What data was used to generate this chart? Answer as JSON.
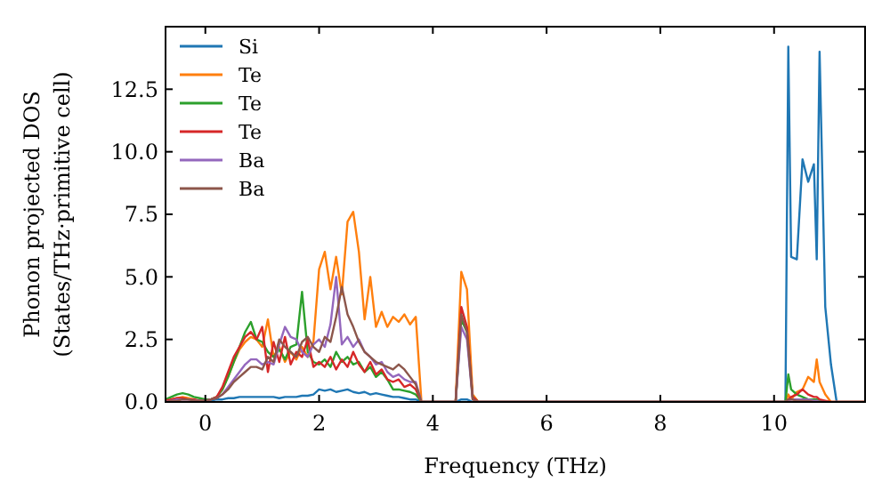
{
  "chart_data": {
    "type": "line",
    "xlabel": "Frequency (THz)",
    "ylabel": "Phonon projected DOS\n(States/THz·primitive cell)",
    "xlim": [
      -0.7,
      11.6
    ],
    "ylim": [
      0,
      15
    ],
    "xticks": [
      0,
      2,
      4,
      6,
      8,
      10
    ],
    "yticks": [
      {
        "value": 0,
        "label": "0.0"
      },
      {
        "value": 2.5,
        "label": "2.5"
      },
      {
        "value": 5,
        "label": "5.0"
      },
      {
        "value": 7.5,
        "label": "7.5"
      },
      {
        "value": 10,
        "label": "10.0"
      },
      {
        "value": 12.5,
        "label": "12.5"
      }
    ],
    "grid": false,
    "legend": "top left",
    "line_style": "solid",
    "marker": "none",
    "x": [
      -0.7,
      -0.6,
      -0.5,
      -0.4,
      -0.3,
      -0.2,
      -0.1,
      0.0,
      0.1,
      0.2,
      0.3,
      0.4,
      0.5,
      0.6,
      0.7,
      0.8,
      0.9,
      1.0,
      1.1,
      1.2,
      1.3,
      1.4,
      1.5,
      1.6,
      1.7,
      1.8,
      1.9,
      2.0,
      2.1,
      2.2,
      2.3,
      2.4,
      2.5,
      2.6,
      2.7,
      2.8,
      2.9,
      3.0,
      3.1,
      3.2,
      3.3,
      3.4,
      3.5,
      3.6,
      3.7,
      3.8,
      3.9,
      4.4,
      4.5,
      4.6,
      4.7,
      4.8,
      10.1,
      10.2,
      10.25,
      10.3,
      10.4,
      10.5,
      10.6,
      10.7,
      10.75,
      10.8,
      10.9,
      11.0,
      11.1,
      11.6
    ],
    "series": [
      {
        "name": "Si",
        "color": "#1f77b4",
        "values": [
          null,
          null,
          null,
          null,
          null,
          null,
          0,
          0,
          0.05,
          0.1,
          0.1,
          0.15,
          0.15,
          0.2,
          0.2,
          0.2,
          0.2,
          0.2,
          0.2,
          0.2,
          0.15,
          0.2,
          0.2,
          0.2,
          0.25,
          0.25,
          0.3,
          0.5,
          0.45,
          0.5,
          0.4,
          0.45,
          0.5,
          0.4,
          0.35,
          0.4,
          0.3,
          0.35,
          0.3,
          0.25,
          0.2,
          0.2,
          0.15,
          0.1,
          0.1,
          0,
          0,
          0,
          0.1,
          0.1,
          0,
          0,
          0,
          0,
          14.2,
          5.8,
          5.7,
          9.7,
          8.8,
          9.5,
          5.7,
          14.0,
          3.8,
          1.5,
          0,
          0
        ]
      },
      {
        "name": "Te",
        "color": "#ff7f0e",
        "values": [
          0,
          0.1,
          0.15,
          0.2,
          0.15,
          0.1,
          0.05,
          0.05,
          0.1,
          0.2,
          0.5,
          1.0,
          1.6,
          2.1,
          2.4,
          2.6,
          2.5,
          2.2,
          3.3,
          1.8,
          2.2,
          1.6,
          2.0,
          1.7,
          2.2,
          1.8,
          2.4,
          5.3,
          6.0,
          4.5,
          5.8,
          4.3,
          7.2,
          7.6,
          6.0,
          3.3,
          5.0,
          3.0,
          3.6,
          3.0,
          3.4,
          3.2,
          3.5,
          3.1,
          3.4,
          0,
          0,
          0,
          5.2,
          4.5,
          0.3,
          0,
          0,
          0,
          0.3,
          0.1,
          0.4,
          0.5,
          1.0,
          0.8,
          1.7,
          0.8,
          0.3,
          0,
          0,
          0
        ]
      },
      {
        "name": "Te",
        "color": "#2ca02c",
        "values": [
          0.1,
          0.2,
          0.3,
          0.35,
          0.3,
          0.2,
          0.15,
          0.1,
          0.1,
          0.2,
          0.5,
          1.0,
          1.6,
          2.2,
          2.8,
          3.2,
          2.5,
          2.4,
          2.0,
          1.8,
          2.1,
          1.7,
          2.2,
          2.3,
          4.4,
          2.0,
          1.6,
          1.5,
          1.7,
          1.4,
          2.0,
          1.6,
          1.8,
          1.5,
          1.6,
          1.2,
          1.4,
          1.0,
          1.2,
          0.9,
          0.5,
          0.5,
          0.45,
          0.4,
          0.3,
          0,
          0,
          0,
          3.3,
          2.8,
          0.2,
          0,
          0,
          0,
          1.1,
          0.5,
          0.3,
          0.2,
          0.1,
          0.1,
          0.1,
          0.05,
          0,
          null,
          null,
          null
        ]
      },
      {
        "name": "Te",
        "color": "#d62728",
        "values": [
          0.05,
          0.1,
          0.15,
          0.15,
          0.1,
          0.1,
          0.05,
          0.05,
          0.1,
          0.2,
          0.6,
          1.2,
          1.8,
          2.2,
          2.6,
          2.8,
          2.5,
          3.0,
          1.2,
          2.4,
          1.6,
          2.6,
          1.5,
          2.0,
          1.8,
          2.5,
          1.4,
          1.6,
          1.4,
          1.8,
          1.3,
          1.7,
          1.4,
          2.0,
          1.5,
          1.2,
          1.6,
          1.1,
          1.3,
          0.9,
          0.8,
          0.9,
          0.6,
          0.7,
          0.5,
          0,
          0,
          0,
          3.8,
          3.0,
          0.2,
          0,
          0,
          0,
          0.1,
          0.2,
          0.3,
          0.5,
          0.3,
          0.2,
          0.2,
          0.1,
          0.05,
          0,
          0,
          0
        ]
      },
      {
        "name": "Ba",
        "color": "#9467bd",
        "values": [
          0,
          0.05,
          0.1,
          0.1,
          0.1,
          0.05,
          0.05,
          0.05,
          0.1,
          0.15,
          0.3,
          0.6,
          0.9,
          1.2,
          1.5,
          1.7,
          1.7,
          1.5,
          1.6,
          1.5,
          2.3,
          3.0,
          2.6,
          2.5,
          2.0,
          1.8,
          2.3,
          2.5,
          2.2,
          3.1,
          5.0,
          2.3,
          2.6,
          2.2,
          2.5,
          2.0,
          1.8,
          1.5,
          1.6,
          1.2,
          1.0,
          1.1,
          0.9,
          0.8,
          0.8,
          0,
          0,
          0,
          3.0,
          2.5,
          0.1,
          0,
          0,
          0,
          0.05,
          0.1,
          0.1,
          0.1,
          0.1,
          0.05,
          0.05,
          0,
          0,
          null,
          null,
          null
        ]
      },
      {
        "name": "Ba",
        "color": "#8c564b",
        "values": [
          0,
          0.05,
          0.05,
          0.1,
          0.1,
          0.05,
          0.05,
          0.05,
          0.1,
          0.15,
          0.3,
          0.5,
          0.8,
          1.0,
          1.2,
          1.4,
          1.4,
          1.3,
          1.8,
          1.6,
          2.5,
          2.2,
          2.0,
          1.8,
          2.4,
          2.6,
          2.2,
          2.0,
          2.6,
          2.4,
          3.4,
          4.6,
          3.5,
          3.0,
          2.4,
          2.0,
          1.8,
          1.6,
          1.5,
          1.4,
          1.3,
          1.5,
          1.3,
          1.0,
          0.7,
          0,
          0,
          0,
          3.5,
          2.8,
          0.1,
          0,
          0,
          0,
          0.1,
          0.1,
          0.05,
          0.05,
          0.05,
          0,
          0,
          0,
          0,
          0,
          0,
          0
        ]
      }
    ]
  }
}
